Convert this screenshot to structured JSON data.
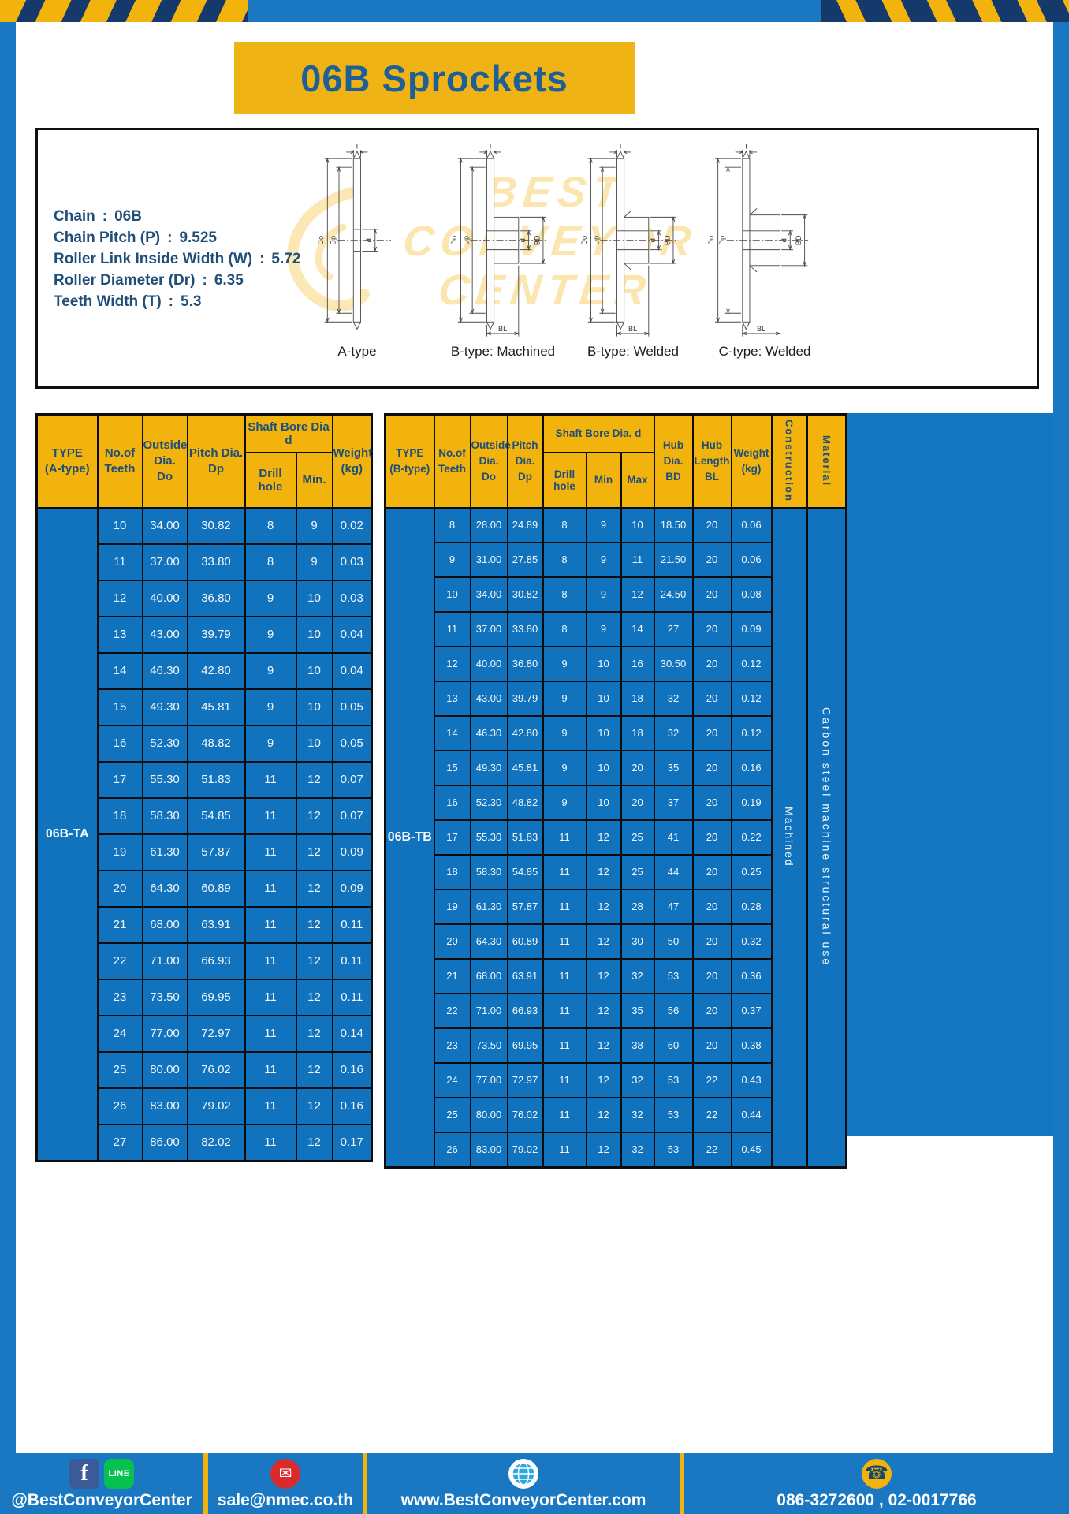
{
  "header": {
    "title": "06B Sprockets"
  },
  "specs": {
    "sep": ":",
    "lines": [
      {
        "label": "Chain",
        "value": "06B"
      },
      {
        "label": "Chain Pitch (P)",
        "value": "9.525"
      },
      {
        "label": "Roller Link Inside Width (W)",
        "value": "5.72"
      },
      {
        "label": "Roller Diameter (Dr)",
        "value": "6.35"
      },
      {
        "label": "Teeth Width (T)",
        "value": "5.3"
      }
    ]
  },
  "watermark": {
    "line1": "BEST",
    "line2": "CONVEYOR",
    "line3": "CENTER"
  },
  "diagrams": {
    "labels": {
      "T": "T",
      "Do": "Do",
      "Dp": "Dp",
      "d": "d",
      "BD": "BD",
      "BL": "BL"
    },
    "captions": {
      "a": "A-type",
      "b_machined": "B-type: Machined",
      "b_welded": "B-type: Welded",
      "c_welded": "C-type: Welded"
    }
  },
  "table_a": {
    "type_value": "06B-TA",
    "headers": {
      "type": [
        "TYPE",
        "(A-type)"
      ],
      "teeth": [
        "No.of",
        "Teeth"
      ],
      "outside": [
        "Outside",
        "Dia.",
        "Do"
      ],
      "pitch": [
        "Pitch Dia.",
        "Dp"
      ],
      "bore_group": "Shaft Bore Dia d",
      "drill": "Drill hole",
      "min": "Min.",
      "weight": [
        "Weight",
        "(kg)"
      ]
    },
    "rows": [
      [
        "10",
        "34.00",
        "30.82",
        "8",
        "9",
        "0.02"
      ],
      [
        "11",
        "37.00",
        "33.80",
        "8",
        "9",
        "0.03"
      ],
      [
        "12",
        "40.00",
        "36.80",
        "9",
        "10",
        "0.03"
      ],
      [
        "13",
        "43.00",
        "39.79",
        "9",
        "10",
        "0.04"
      ],
      [
        "14",
        "46.30",
        "42.80",
        "9",
        "10",
        "0.04"
      ],
      [
        "15",
        "49.30",
        "45.81",
        "9",
        "10",
        "0.05"
      ],
      [
        "16",
        "52.30",
        "48.82",
        "9",
        "10",
        "0.05"
      ],
      [
        "17",
        "55.30",
        "51.83",
        "11",
        "12",
        "0.07"
      ],
      [
        "18",
        "58.30",
        "54.85",
        "11",
        "12",
        "0.07"
      ],
      [
        "19",
        "61.30",
        "57.87",
        "11",
        "12",
        "0.09"
      ],
      [
        "20",
        "64.30",
        "60.89",
        "11",
        "12",
        "0.09"
      ],
      [
        "21",
        "68.00",
        "63.91",
        "11",
        "12",
        "0.11"
      ],
      [
        "22",
        "71.00",
        "66.93",
        "11",
        "12",
        "0.11"
      ],
      [
        "23",
        "73.50",
        "69.95",
        "11",
        "12",
        "0.11"
      ],
      [
        "24",
        "77.00",
        "72.97",
        "11",
        "12",
        "0.14"
      ],
      [
        "25",
        "80.00",
        "76.02",
        "11",
        "12",
        "0.16"
      ],
      [
        "26",
        "83.00",
        "79.02",
        "11",
        "12",
        "0.16"
      ],
      [
        "27",
        "86.00",
        "82.02",
        "11",
        "12",
        "0.17"
      ]
    ]
  },
  "table_b": {
    "type_value": "06B-TB",
    "construction_value": "Machined",
    "material_value": "Carbon steel machine structural use",
    "headers": {
      "type": [
        "TYPE",
        "(B-type)"
      ],
      "teeth": [
        "No.of",
        "Teeth"
      ],
      "outside": [
        "Outside",
        "Dia.",
        "Do"
      ],
      "pitch": [
        "Pitch",
        "Dia.",
        "Dp"
      ],
      "bore_group": "Shaft Bore Dia.  d",
      "drill": "Drill hole",
      "min": "Min",
      "max": "Max",
      "hub_dia": [
        "Hub",
        "Dia.",
        "BD"
      ],
      "hub_len": [
        "Hub",
        "Length",
        "BL"
      ],
      "weight": [
        "Weight",
        "(kg)"
      ],
      "construction": "Construction",
      "material": "Material"
    },
    "rows": [
      [
        "8",
        "28.00",
        "24.89",
        "8",
        "9",
        "10",
        "18.50",
        "20",
        "0.06"
      ],
      [
        "9",
        "31.00",
        "27.85",
        "8",
        "9",
        "11",
        "21.50",
        "20",
        "0.06"
      ],
      [
        "10",
        "34.00",
        "30.82",
        "8",
        "9",
        "12",
        "24.50",
        "20",
        "0.08"
      ],
      [
        "11",
        "37.00",
        "33.80",
        "8",
        "9",
        "14",
        "27",
        "20",
        "0.09"
      ],
      [
        "12",
        "40.00",
        "36.80",
        "9",
        "10",
        "16",
        "30.50",
        "20",
        "0.12"
      ],
      [
        "13",
        "43.00",
        "39.79",
        "9",
        "10",
        "18",
        "32",
        "20",
        "0.12"
      ],
      [
        "14",
        "46.30",
        "42.80",
        "9",
        "10",
        "18",
        "32",
        "20",
        "0.12"
      ],
      [
        "15",
        "49.30",
        "45.81",
        "9",
        "10",
        "20",
        "35",
        "20",
        "0.16"
      ],
      [
        "16",
        "52.30",
        "48.82",
        "9",
        "10",
        "20",
        "37",
        "20",
        "0.19"
      ],
      [
        "17",
        "55.30",
        "51.83",
        "11",
        "12",
        "25",
        "41",
        "20",
        "0.22"
      ],
      [
        "18",
        "58.30",
        "54.85",
        "11",
        "12",
        "25",
        "44",
        "20",
        "0.25"
      ],
      [
        "19",
        "61.30",
        "57.87",
        "11",
        "12",
        "28",
        "47",
        "20",
        "0.28"
      ],
      [
        "20",
        "64.30",
        "60.89",
        "11",
        "12",
        "30",
        "50",
        "20",
        "0.32"
      ],
      [
        "21",
        "68.00",
        "63.91",
        "11",
        "12",
        "32",
        "53",
        "20",
        "0.36"
      ],
      [
        "22",
        "71.00",
        "66.93",
        "11",
        "12",
        "35",
        "56",
        "20",
        "0.37"
      ],
      [
        "23",
        "73.50",
        "69.95",
        "11",
        "12",
        "38",
        "60",
        "20",
        "0.38"
      ],
      [
        "24",
        "77.00",
        "72.97",
        "11",
        "12",
        "32",
        "53",
        "22",
        "0.43"
      ],
      [
        "25",
        "80.00",
        "76.02",
        "11",
        "12",
        "32",
        "53",
        "22",
        "0.44"
      ],
      [
        "26",
        "83.00",
        "79.02",
        "11",
        "12",
        "32",
        "53",
        "22",
        "0.45"
      ]
    ]
  },
  "footer": {
    "items": [
      {
        "icons": [
          "facebook-icon",
          "line-icon"
        ],
        "label": "@BestConveyorCenter"
      },
      {
        "icons": [
          "mail-icon"
        ],
        "label": "sale@nmec.co.th"
      },
      {
        "icons": [
          "globe-icon"
        ],
        "label": "www.BestConveyorCenter.com"
      },
      {
        "icons": [
          "phone-icon"
        ],
        "label": "086-3272600 , 02-0017766"
      }
    ],
    "line_icon_text": "LINE",
    "facebook_icon_text": "f"
  },
  "colors": {
    "frame_blue": "#1a78c2",
    "cell_blue": "#1173bd",
    "accent_yellow": "#f2b30d",
    "stripe_navy": "#16396b",
    "navy_text": "#1f4e79"
  }
}
